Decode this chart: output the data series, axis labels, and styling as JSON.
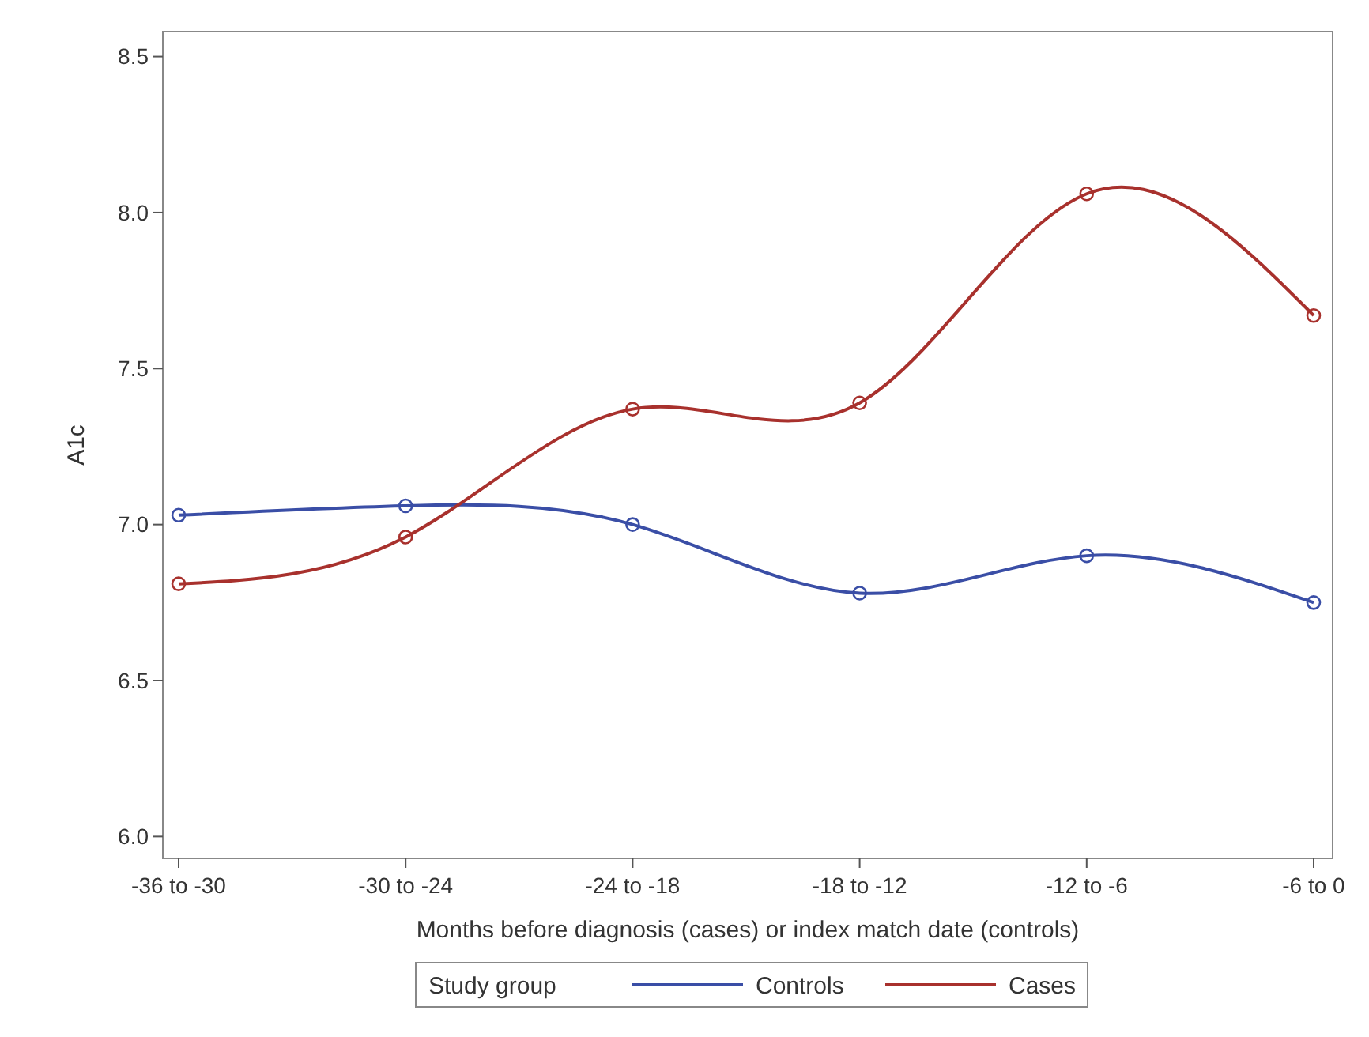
{
  "chart_data": {
    "type": "line",
    "xlabel": "Months before diagnosis (cases) or index match date (controls)",
    "ylabel": "A1c",
    "categories": [
      "-36 to -30",
      "-30 to -24",
      "-24 to -18",
      "-18 to -12",
      "-12 to -6",
      "-6 to 0"
    ],
    "series": [
      {
        "name": "Controls",
        "color": "#3a4ea6",
        "values": [
          7.03,
          7.06,
          7.0,
          6.78,
          6.9,
          6.75
        ]
      },
      {
        "name": "Cases",
        "color": "#a8312d",
        "values": [
          6.81,
          6.96,
          7.37,
          7.39,
          8.06,
          7.67
        ]
      }
    ],
    "ylim": [
      5.93,
      8.58
    ],
    "yticks": [
      {
        "value": 6.0,
        "label": "6.0"
      },
      {
        "value": 6.5,
        "label": "6.5"
      },
      {
        "value": 7.0,
        "label": "7.0"
      },
      {
        "value": 7.5,
        "label": "7.5"
      },
      {
        "value": 8.0,
        "label": "8.0"
      },
      {
        "value": 8.5,
        "label": "8.5"
      }
    ],
    "legend": "bottom",
    "legend_title": "Study group",
    "marker": "circle",
    "line_style": "solid",
    "grid": false
  }
}
